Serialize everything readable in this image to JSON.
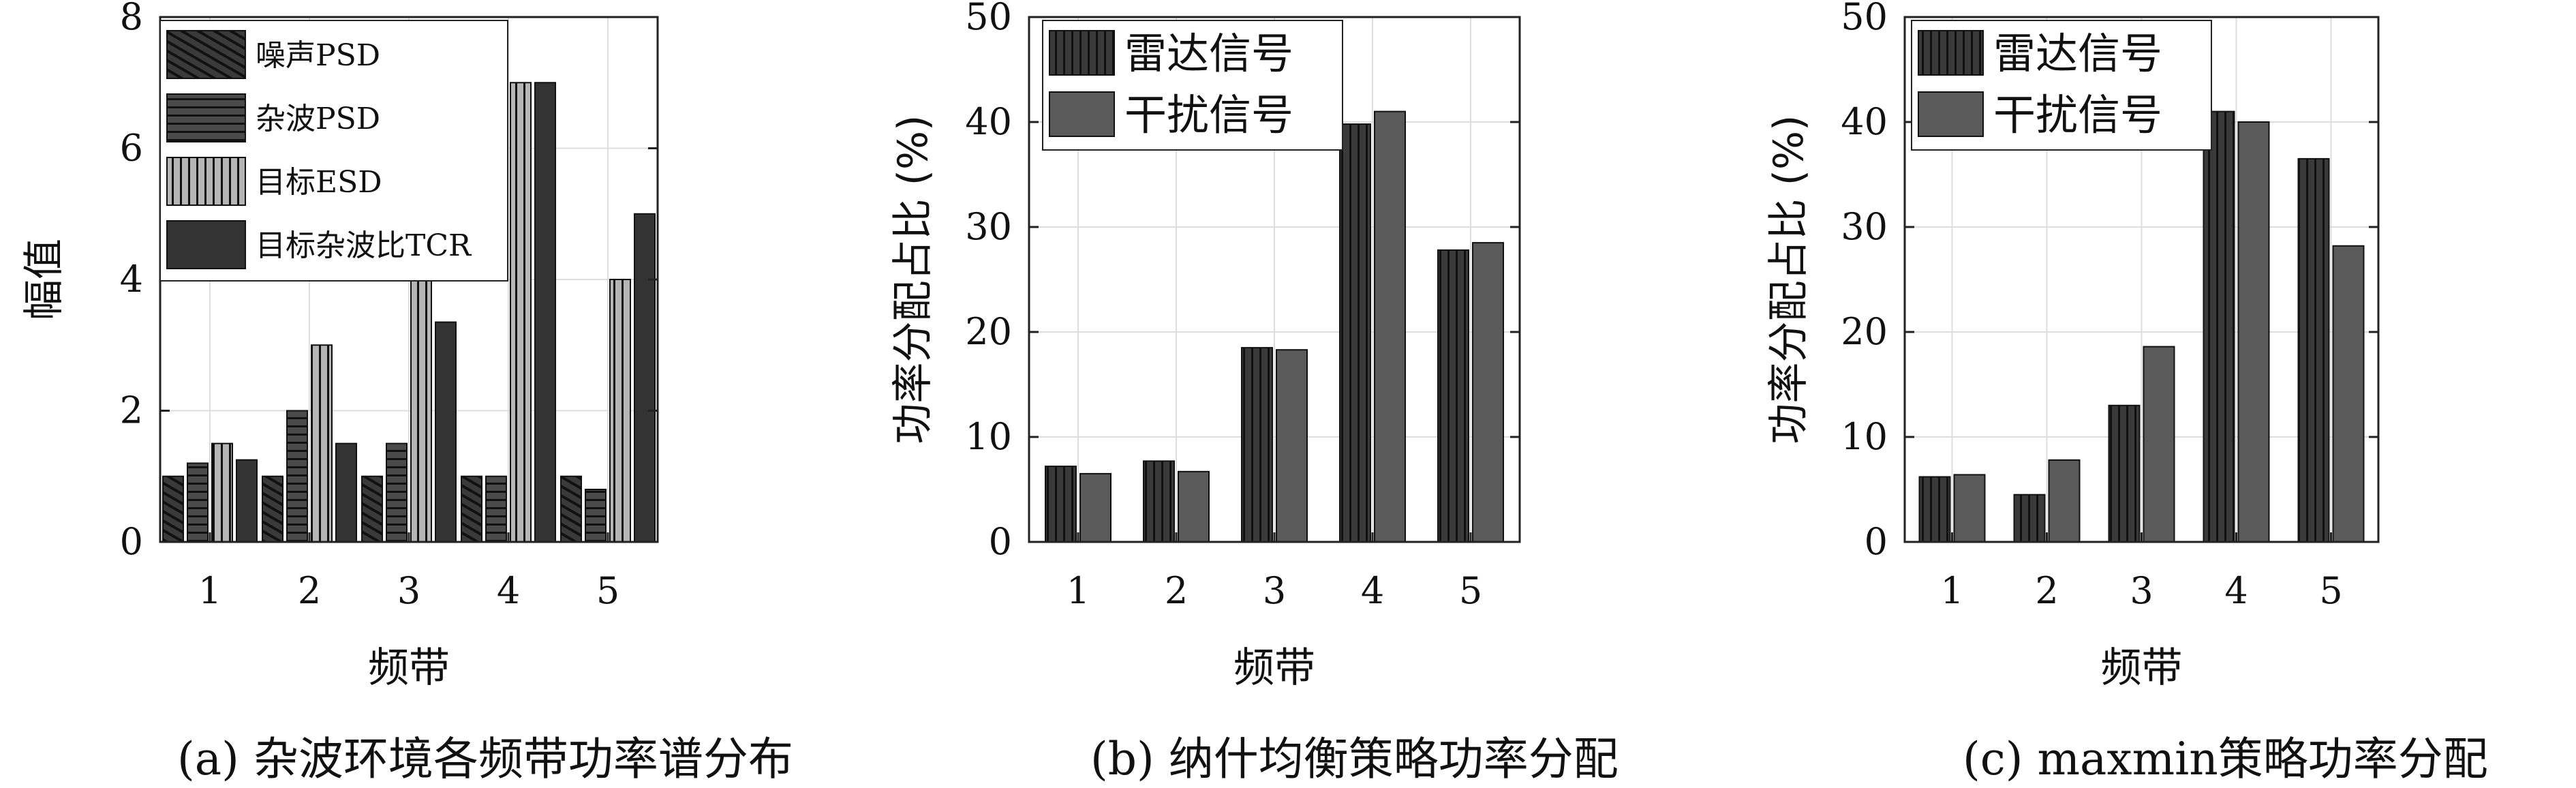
{
  "chart_data": [
    {
      "type": "bar",
      "caption": "(a) 杂波环境各频带功率谱分布",
      "xlabel": "频带",
      "ylabel": "幅值",
      "categories": [
        "1",
        "2",
        "3",
        "4",
        "5"
      ],
      "ylim": [
        0,
        8
      ],
      "yticks": [
        "0",
        "2",
        "4",
        "6",
        "8"
      ],
      "grid": true,
      "legend_position": "top-left",
      "series": [
        {
          "name": "噪声PSD",
          "values": [
            1,
            1,
            1,
            1,
            1
          ],
          "color": "#3a3a3a",
          "pattern": "diagonal"
        },
        {
          "name": "杂波PSD",
          "values": [
            1.2,
            2,
            1.5,
            1,
            0.8
          ],
          "color": "#4a4a4a",
          "pattern": "horizontal"
        },
        {
          "name": "目标ESD",
          "values": [
            1.5,
            3,
            5,
            7,
            4
          ],
          "color": "#b5b5b5",
          "pattern": "vertical"
        },
        {
          "name": "目标杂波比TCR",
          "values": [
            1.25,
            1.5,
            3.35,
            7,
            5
          ],
          "color": "#333333",
          "pattern": "solid"
        }
      ]
    },
    {
      "type": "bar",
      "caption": "(b) 纳什均衡策略功率分配",
      "xlabel": "频带",
      "ylabel": "功率分配占比 (%)",
      "categories": [
        "1",
        "2",
        "3",
        "4",
        "5"
      ],
      "ylim": [
        0,
        50
      ],
      "yticks": [
        "0",
        "10",
        "20",
        "30",
        "40",
        "50"
      ],
      "grid": true,
      "legend_position": "top-left",
      "series": [
        {
          "name": "雷达信号",
          "values": [
            7.2,
            7.7,
            18.5,
            39.8,
            27.8
          ],
          "color": "#3a3a3a",
          "pattern": "vertical"
        },
        {
          "name": "干扰信号",
          "values": [
            6.5,
            6.7,
            18.3,
            41,
            28.5
          ],
          "color": "#5a5a5a",
          "pattern": "solid"
        }
      ]
    },
    {
      "type": "bar",
      "caption": "(c) maxmin策略功率分配",
      "xlabel": "频带",
      "ylabel": "功率分配占比 (%)",
      "categories": [
        "1",
        "2",
        "3",
        "4",
        "5"
      ],
      "ylim": [
        0,
        50
      ],
      "yticks": [
        "0",
        "10",
        "20",
        "30",
        "40",
        "50"
      ],
      "grid": true,
      "legend_position": "top-left",
      "series": [
        {
          "name": "雷达信号",
          "values": [
            6.2,
            4.5,
            13,
            41,
            36.5
          ],
          "color": "#3a3a3a",
          "pattern": "vertical"
        },
        {
          "name": "干扰信号",
          "values": [
            6.4,
            7.8,
            18.6,
            40,
            28.2
          ],
          "color": "#5a5a5a",
          "pattern": "solid"
        }
      ]
    }
  ]
}
